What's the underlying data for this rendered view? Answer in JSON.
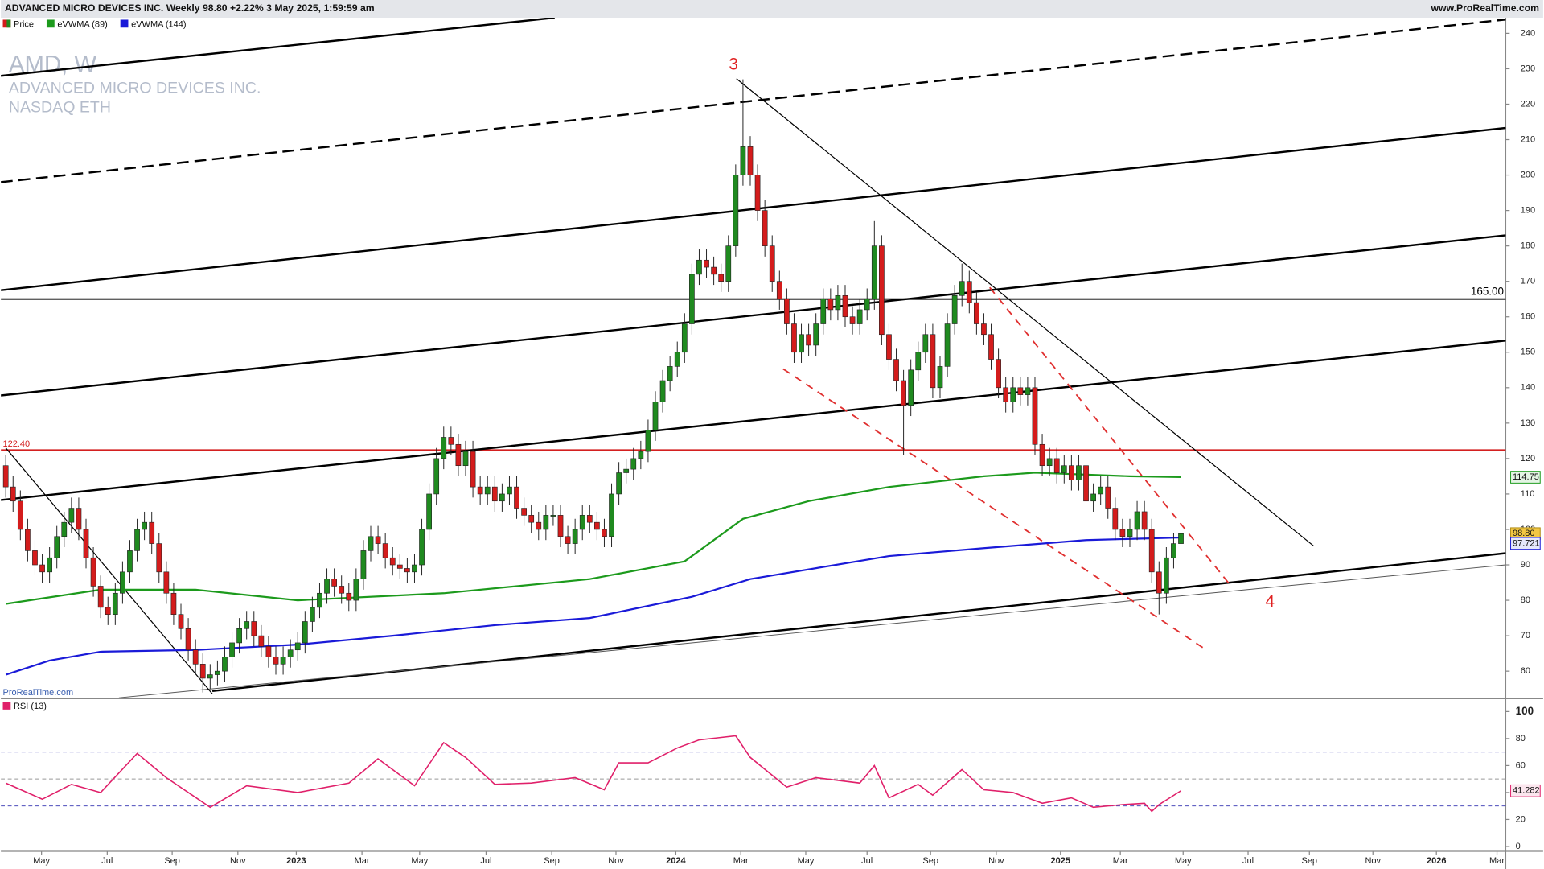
{
  "header": {
    "title": "ADVANCED MICRO DEVICES INC. Weekly 98.80 +2.22% 3 May 2025, 1:59:59 am",
    "site": "www.ProRealTime.com"
  },
  "chart_data": {
    "type": "candlestick",
    "title": "AMD, W",
    "subtitle": "ADVANCED MICRO DEVICES INC.",
    "exchange": "NASDAQ ETH",
    "watermark": "ProRealTime.com",
    "xlim": [
      -0.67,
      205.5
    ],
    "xticks": [
      {
        "value": 4.9,
        "label": "May"
      },
      {
        "value": 13.9,
        "label": "Jul"
      },
      {
        "value": 22.8,
        "label": "Sep"
      },
      {
        "value": 31.8,
        "label": "Nov"
      },
      {
        "value": 39.8,
        "label": "2023"
      },
      {
        "value": 48.8,
        "label": "Mar"
      },
      {
        "value": 56.7,
        "label": "May"
      },
      {
        "value": 65.8,
        "label": "Jul"
      },
      {
        "value": 74.8,
        "label": "Sep"
      },
      {
        "value": 83.6,
        "label": "Nov"
      },
      {
        "value": 91.8,
        "label": "2024"
      },
      {
        "value": 100.7,
        "label": "Mar"
      },
      {
        "value": 109.6,
        "label": "May"
      },
      {
        "value": 118,
        "label": "Jul"
      },
      {
        "value": 126.7,
        "label": "Sep"
      },
      {
        "value": 135.7,
        "label": "Nov"
      },
      {
        "value": 144.5,
        "label": "2025"
      },
      {
        "value": 152.7,
        "label": "Mar"
      },
      {
        "value": 161.3,
        "label": "May"
      },
      {
        "value": 170.2,
        "label": "Jul"
      },
      {
        "value": 178.6,
        "label": "Sep"
      },
      {
        "value": 187.3,
        "label": "Nov"
      },
      {
        "value": 196,
        "label": "2026"
      },
      {
        "value": 204.3,
        "label": "Mar"
      }
    ],
    "ylim": [
      52.5,
      244.4
    ],
    "yticks": [
      60,
      70,
      80,
      90,
      100,
      110,
      120,
      130,
      140,
      150,
      160,
      170,
      180,
      190,
      200,
      210,
      220,
      230,
      240
    ],
    "candles": {
      "name": "Price",
      "up_color": "#1f8a1f",
      "down_color": "#d41c1c",
      "last_label": "98.80",
      "label_color": "#f2c744",
      "open": [
        118,
        112,
        108,
        100,
        94,
        90,
        88,
        92,
        98,
        102,
        106,
        100,
        92,
        84,
        78,
        76,
        82,
        88,
        94,
        100,
        102,
        96,
        88,
        82,
        76,
        72,
        66,
        62,
        58,
        59,
        60,
        64,
        68,
        72,
        74,
        70,
        67,
        64,
        62,
        64,
        66,
        68,
        74,
        78,
        82,
        86,
        84,
        82,
        80,
        86,
        94,
        98,
        96,
        92,
        90,
        89,
        88,
        90,
        100,
        110,
        120,
        126,
        124,
        118,
        122,
        112,
        110,
        112,
        108,
        110,
        112,
        106,
        104,
        102,
        100,
        104,
        104,
        98,
        96,
        100,
        104,
        102,
        100,
        98,
        110,
        116,
        117,
        120,
        122,
        128,
        136,
        142,
        146,
        150,
        158,
        172,
        176,
        174,
        172,
        170,
        180,
        200,
        208,
        200,
        190,
        180,
        170,
        165,
        158,
        150,
        155,
        152,
        158,
        165,
        162,
        166,
        160,
        158,
        162,
        165,
        180,
        155,
        148,
        142,
        135,
        145,
        150,
        155,
        140,
        146,
        158,
        166,
        170,
        164,
        158,
        155,
        148,
        140,
        136,
        140,
        138,
        140,
        124,
        118,
        120,
        116,
        118,
        114,
        118,
        108,
        110,
        112,
        106,
        100,
        98,
        100,
        105,
        100,
        88,
        82,
        92,
        96
      ],
      "high": [
        121,
        115,
        111,
        103,
        97,
        93,
        95,
        101,
        105,
        109,
        109,
        103,
        95,
        87,
        81,
        85,
        91,
        97,
        103,
        105,
        105,
        99,
        91,
        85,
        79,
        75,
        69,
        65,
        62,
        63,
        67,
        71,
        75,
        77,
        77,
        73,
        70,
        67,
        67,
        69,
        71,
        77,
        81,
        85,
        89,
        89,
        87,
        85,
        89,
        97,
        101,
        101,
        99,
        95,
        93,
        92,
        93,
        103,
        113,
        123,
        129,
        129,
        127,
        125,
        125,
        115,
        115,
        115,
        113,
        115,
        115,
        109,
        107,
        105,
        107,
        107,
        107,
        101,
        103,
        107,
        107,
        105,
        103,
        113,
        119,
        120,
        123,
        125,
        131,
        139,
        145,
        149,
        153,
        161,
        175,
        179,
        179,
        177,
        175,
        183,
        203,
        227,
        211,
        203,
        193,
        183,
        173,
        168,
        161,
        158,
        158,
        161,
        168,
        168,
        169,
        169,
        163,
        165,
        168,
        187,
        183,
        158,
        151,
        145,
        148,
        153,
        158,
        158,
        149,
        161,
        169,
        175,
        173,
        167,
        161,
        158,
        151,
        143,
        143,
        143,
        143,
        143,
        127,
        123,
        123,
        121,
        121,
        121,
        121,
        113,
        115,
        115,
        109,
        103,
        103,
        108,
        108,
        103,
        91,
        95,
        99,
        102
      ],
      "low": [
        109,
        105,
        97,
        91,
        87,
        85,
        85,
        89,
        95,
        99,
        97,
        89,
        81,
        75,
        73,
        73,
        79,
        85,
        91,
        97,
        93,
        85,
        79,
        73,
        69,
        63,
        59,
        54,
        55,
        56,
        57,
        61,
        65,
        69,
        67,
        64,
        61,
        59,
        59,
        61,
        63,
        65,
        71,
        75,
        79,
        81,
        79,
        77,
        77,
        83,
        91,
        93,
        89,
        87,
        86,
        85,
        85,
        87,
        97,
        107,
        117,
        121,
        115,
        115,
        109,
        107,
        107,
        105,
        105,
        107,
        103,
        101,
        99,
        97,
        97,
        101,
        95,
        93,
        93,
        97,
        99,
        97,
        95,
        95,
        107,
        113,
        114,
        117,
        119,
        125,
        133,
        139,
        143,
        147,
        155,
        169,
        171,
        169,
        167,
        167,
        177,
        197,
        197,
        187,
        177,
        167,
        162,
        155,
        147,
        147,
        149,
        149,
        155,
        159,
        159,
        157,
        155,
        155,
        159,
        162,
        152,
        145,
        139,
        121,
        132,
        142,
        147,
        137,
        137,
        143,
        155,
        163,
        161,
        155,
        152,
        145,
        137,
        133,
        133,
        135,
        135,
        121,
        115,
        115,
        113,
        113,
        111,
        111,
        105,
        105,
        107,
        103,
        97,
        95,
        95,
        97,
        97,
        85,
        76,
        79,
        89,
        93
      ],
      "close": [
        112,
        108,
        100,
        94,
        90,
        88,
        92,
        98,
        102,
        106,
        100,
        92,
        84,
        78,
        76,
        82,
        88,
        94,
        100,
        102,
        96,
        88,
        82,
        76,
        72,
        66,
        62,
        58,
        59,
        60,
        64,
        68,
        72,
        74,
        70,
        67,
        64,
        62,
        64,
        66,
        68,
        74,
        78,
        82,
        86,
        84,
        82,
        80,
        86,
        94,
        98,
        96,
        92,
        90,
        89,
        88,
        90,
        100,
        110,
        120,
        126,
        124,
        118,
        122,
        112,
        110,
        112,
        108,
        110,
        112,
        106,
        104,
        102,
        100,
        104,
        104,
        98,
        96,
        100,
        104,
        102,
        100,
        98,
        110,
        116,
        117,
        120,
        122,
        128,
        136,
        142,
        146,
        150,
        158,
        172,
        176,
        174,
        172,
        170,
        180,
        200,
        208,
        200,
        190,
        180,
        170,
        165,
        158,
        150,
        155,
        152,
        158,
        165,
        162,
        166,
        160,
        158,
        162,
        165,
        180,
        155,
        148,
        142,
        135,
        145,
        150,
        155,
        140,
        146,
        158,
        166,
        170,
        164,
        158,
        155,
        148,
        140,
        136,
        140,
        138,
        140,
        124,
        118,
        120,
        116,
        118,
        114,
        118,
        108,
        110,
        112,
        106,
        100,
        98,
        100,
        105,
        100,
        88,
        82,
        92,
        96,
        98.8
      ]
    },
    "series": [
      {
        "name": "eVWMA (89)",
        "color": "#1c9a1c",
        "last_label": "114.75",
        "x": [
          0,
          13,
          26,
          40,
          60,
          80,
          93,
          101,
          110,
          121,
          134,
          141,
          154,
          161
        ],
        "values": [
          79,
          83,
          83,
          80,
          82,
          86,
          91,
          103,
          108,
          112,
          115,
          116,
          115,
          114.75
        ]
      },
      {
        "name": "eVWMA (144)",
        "color": "#1a1ad8",
        "last_label": "97.721",
        "x": [
          0,
          6,
          13,
          26,
          40,
          53,
          67,
          80,
          94,
          102,
          121,
          134,
          148,
          161
        ],
        "values": [
          59,
          63,
          65.5,
          66,
          67.5,
          70,
          73,
          75,
          81,
          86,
          92.5,
          94.7,
          97,
          97.721
        ]
      }
    ],
    "hlines": [
      {
        "value": 165,
        "label": "165.00",
        "color": "#000000"
      },
      {
        "value": 122.4,
        "label": "122.40",
        "color": "#d42020"
      }
    ],
    "trendlines": [
      {
        "points": [
          [
            -0.67,
            228
          ],
          [
            75.2,
            244.4
          ]
        ],
        "color": "#000000",
        "width": 2,
        "dash": "none"
      },
      {
        "points": [
          [
            -0.67,
            198
          ],
          [
            205.5,
            243.9
          ]
        ],
        "color": "#000000",
        "width": 2,
        "dash": "12 6"
      },
      {
        "points": [
          [
            -0.67,
            167.5
          ],
          [
            205.5,
            213.3
          ]
        ],
        "color": "#000000",
        "width": 2,
        "dash": "none"
      },
      {
        "points": [
          [
            -0.67,
            137.8
          ],
          [
            205.5,
            183
          ]
        ],
        "color": "#000000",
        "width": 2,
        "dash": "none"
      },
      {
        "points": [
          [
            -0.67,
            108.3
          ],
          [
            205.5,
            153.3
          ]
        ],
        "color": "#000000",
        "width": 2,
        "dash": "none"
      },
      {
        "points": [
          [
            28.3,
            54.4
          ],
          [
            205.5,
            93.3
          ]
        ],
        "color": "#000000",
        "width": 2,
        "dash": "none"
      },
      {
        "points": [
          [
            15.5,
            52.5
          ],
          [
            205.5,
            90
          ]
        ],
        "color": "#555555",
        "width": 0.8,
        "dash": "none"
      },
      {
        "points": [
          [
            0,
            123
          ],
          [
            28.3,
            53.6
          ]
        ],
        "color": "#000000",
        "width": 1,
        "dash": "none"
      },
      {
        "points": [
          [
            100.1,
            227.2
          ],
          [
            179.2,
            95.3
          ]
        ],
        "color": "#000000",
        "width": 1,
        "dash": "none"
      },
      {
        "points": [
          [
            106.5,
            145.3
          ],
          [
            164.4,
            66.1
          ]
        ],
        "color": "#e03030",
        "width": 1.5,
        "dash": "8 6"
      },
      {
        "points": [
          [
            134.8,
            168.3
          ],
          [
            167.8,
            84.2
          ]
        ],
        "color": "#e03030",
        "width": 1.5,
        "dash": "8 6"
      }
    ],
    "annotations": [
      {
        "text": "3",
        "x": 99.7,
        "y": 231,
        "color": "#e02020"
      },
      {
        "text": "4",
        "x": 173.2,
        "y": 79.4,
        "color": "#e02020"
      }
    ],
    "rsi": {
      "name": "RSI (13)",
      "color": "#e0206a",
      "last_label": "41.282",
      "ylim": [
        -3.6,
        108.8
      ],
      "yticks": [
        0,
        20,
        40,
        60,
        80,
        100
      ],
      "levels": [
        30,
        50,
        70
      ],
      "x": [
        0,
        5,
        9,
        13,
        18,
        22,
        28,
        33,
        40,
        47,
        51,
        56,
        60,
        63,
        67,
        72,
        78,
        82,
        84,
        88,
        92,
        95,
        100,
        102,
        107,
        111,
        117,
        119,
        121,
        125,
        127,
        131,
        134,
        138,
        142,
        146,
        149,
        153,
        156,
        157,
        158,
        161
      ],
      "values": [
        47,
        35,
        46,
        40,
        69,
        51,
        29,
        45,
        40,
        47,
        65,
        45,
        77,
        66,
        46,
        47,
        51,
        42,
        62,
        62,
        73,
        79,
        82,
        66,
        44,
        51,
        47,
        60,
        36,
        46,
        38,
        57,
        42,
        40,
        32,
        36,
        29,
        31,
        32,
        26,
        31,
        41.282
      ]
    }
  }
}
